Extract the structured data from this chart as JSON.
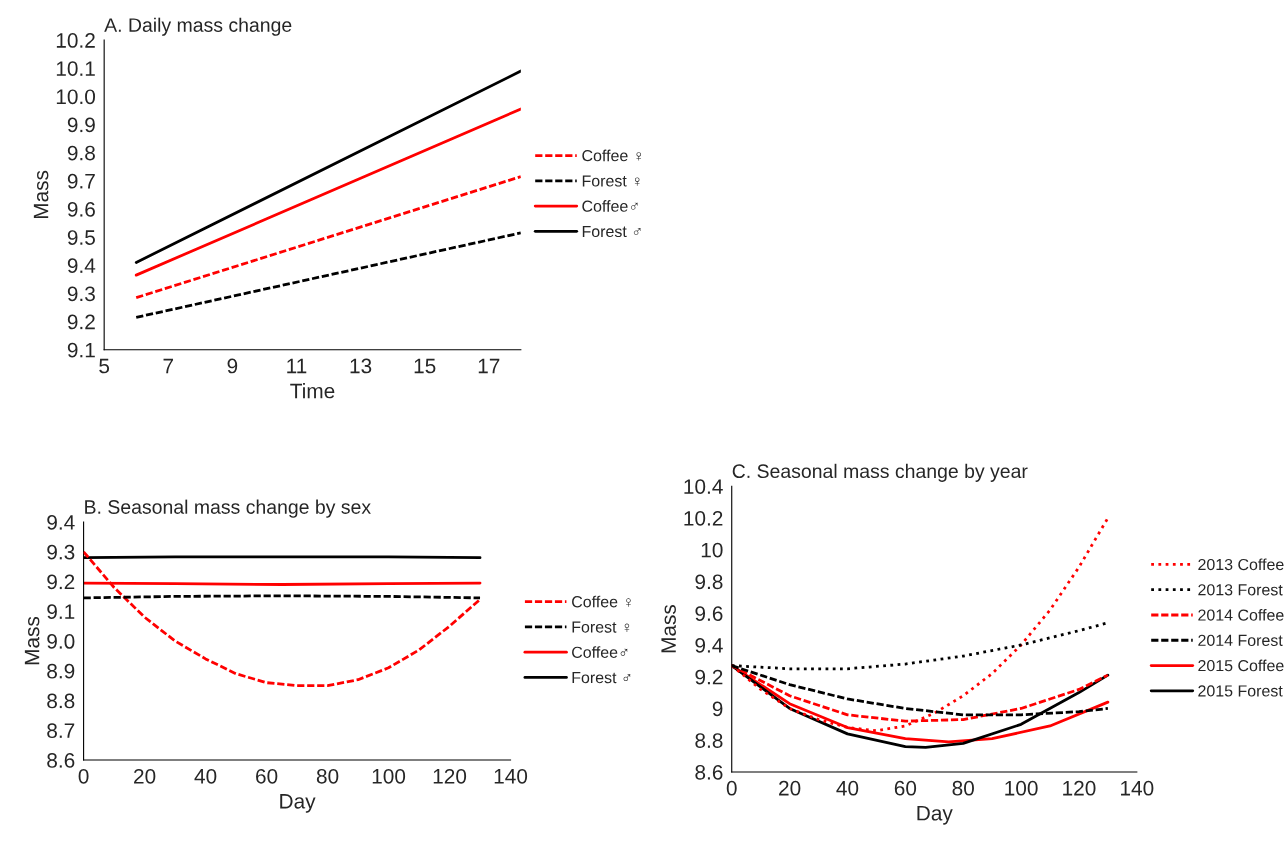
{
  "chart_data": [
    {
      "type": "line",
      "title": "A. Daily mass change",
      "xlabel": "Time",
      "ylabel": "Mass",
      "xlim": [
        5,
        18
      ],
      "xticks": [
        5,
        7,
        9,
        11,
        13,
        15,
        17
      ],
      "ylim": [
        9.1,
        10.2
      ],
      "yticks": [
        9.1,
        9.2,
        9.3,
        9.4,
        9.5,
        9.6,
        9.7,
        9.8,
        9.9,
        {
          "value": 10.0,
          "label": "10.0"
        },
        10.1,
        10.2
      ],
      "legend": "right",
      "grid": false,
      "series": [
        {
          "name": "Coffee ♀",
          "color": "#ff0000",
          "line_style": "dashed",
          "x": [
            6,
            18
          ],
          "values": [
            9.285,
            9.715
          ]
        },
        {
          "name": "Forest ♀",
          "color": "#000000",
          "line_style": "dashed",
          "x": [
            6,
            18
          ],
          "values": [
            9.215,
            9.515
          ]
        },
        {
          "name": "Coffee♂",
          "color": "#ff0000",
          "line_style": "solid",
          "x": [
            6,
            18
          ],
          "values": [
            9.365,
            9.955
          ]
        },
        {
          "name": "Forest ♂",
          "color": "#000000",
          "line_style": "solid",
          "x": [
            6,
            18
          ],
          "values": [
            9.41,
            10.09
          ]
        }
      ]
    },
    {
      "type": "line",
      "title": "B. Seasonal mass change by sex",
      "xlabel": "Day",
      "ylabel": "Mass",
      "xlim": [
        0,
        140
      ],
      "xticks": [
        0,
        20,
        40,
        60,
        80,
        100,
        120,
        140
      ],
      "ylim": [
        8.6,
        9.4
      ],
      "yticks": [
        8.6,
        8.7,
        8.8,
        8.9,
        {
          "value": 9.0,
          "label": "9.0"
        },
        9.1,
        9.2,
        9.3,
        9.4
      ],
      "legend": "right",
      "grid": false,
      "series": [
        {
          "name": "Coffee ♀",
          "color": "#ff0000",
          "line_style": "dashed",
          "x": [
            0,
            10,
            20,
            30,
            40,
            50,
            60,
            70,
            80,
            90,
            100,
            110,
            120,
            130
          ],
          "values": [
            9.3,
            9.18,
            9.08,
            9.0,
            8.94,
            8.89,
            8.86,
            8.85,
            8.85,
            8.87,
            8.91,
            8.97,
            9.05,
            9.14
          ]
        },
        {
          "name": "Forest ♀",
          "color": "#000000",
          "line_style": "dashed",
          "x": [
            0,
            30,
            65,
            100,
            130
          ],
          "values": [
            9.145,
            9.15,
            9.152,
            9.15,
            9.145
          ]
        },
        {
          "name": "Coffee♂",
          "color": "#ff0000",
          "line_style": "solid",
          "x": [
            0,
            30,
            65,
            100,
            130
          ],
          "values": [
            9.195,
            9.193,
            9.19,
            9.193,
            9.195
          ]
        },
        {
          "name": "Forest ♂",
          "color": "#000000",
          "line_style": "solid",
          "x": [
            0,
            30,
            65,
            100,
            130
          ],
          "values": [
            9.28,
            9.283,
            9.283,
            9.283,
            9.28
          ]
        }
      ]
    },
    {
      "type": "line",
      "title": "C. Seasonal mass change by year",
      "xlabel": "Day",
      "ylabel": "Mass",
      "xlim": [
        0,
        140
      ],
      "xticks": [
        0,
        20,
        40,
        60,
        80,
        100,
        120,
        140
      ],
      "ylim": [
        8.6,
        10.4
      ],
      "yticks": [
        8.6,
        8.8,
        9,
        9.2,
        9.4,
        9.6,
        9.8,
        10,
        10.2,
        10.4
      ],
      "legend": "right",
      "grid": false,
      "series": [
        {
          "name": "2013 Coffee",
          "color": "#ff0000",
          "line_style": "dotted",
          "x": [
            0,
            10,
            20,
            30,
            40,
            50,
            60,
            70,
            80,
            90,
            100,
            110,
            120,
            130
          ],
          "values": [
            9.27,
            9.12,
            9.0,
            8.93,
            8.88,
            8.86,
            8.89,
            8.97,
            9.08,
            9.22,
            9.4,
            9.62,
            9.89,
            10.2
          ]
        },
        {
          "name": "2013 Forest",
          "color": "#000000",
          "line_style": "dotted",
          "x": [
            0,
            20,
            40,
            60,
            80,
            100,
            120,
            130
          ],
          "values": [
            9.27,
            9.25,
            9.25,
            9.28,
            9.33,
            9.4,
            9.49,
            9.54
          ]
        },
        {
          "name": "2014 Coffee",
          "color": "#ff0000",
          "line_style": "dashed",
          "x": [
            0,
            20,
            40,
            60,
            80,
            100,
            120,
            130
          ],
          "values": [
            9.27,
            9.08,
            8.96,
            8.92,
            8.93,
            9.0,
            9.12,
            9.21
          ]
        },
        {
          "name": "2014 Forest",
          "color": "#000000",
          "line_style": "dashed",
          "x": [
            0,
            20,
            40,
            60,
            80,
            100,
            120,
            130
          ],
          "values": [
            9.27,
            9.15,
            9.06,
            9.0,
            8.96,
            8.96,
            8.98,
            9.0
          ]
        },
        {
          "name": "2015 Coffee",
          "color": "#ff0000",
          "line_style": "solid",
          "x": [
            0,
            20,
            40,
            60,
            75,
            90,
            110,
            130
          ],
          "values": [
            9.27,
            9.03,
            8.88,
            8.81,
            8.79,
            8.81,
            8.89,
            9.04
          ]
        },
        {
          "name": "2015 Forest",
          "color": "#000000",
          "line_style": "solid",
          "x": [
            0,
            20,
            40,
            60,
            67,
            80,
            100,
            120,
            130
          ],
          "values": [
            9.27,
            9.0,
            8.84,
            8.76,
            8.755,
            8.78,
            8.9,
            9.1,
            9.21
          ]
        }
      ]
    }
  ]
}
